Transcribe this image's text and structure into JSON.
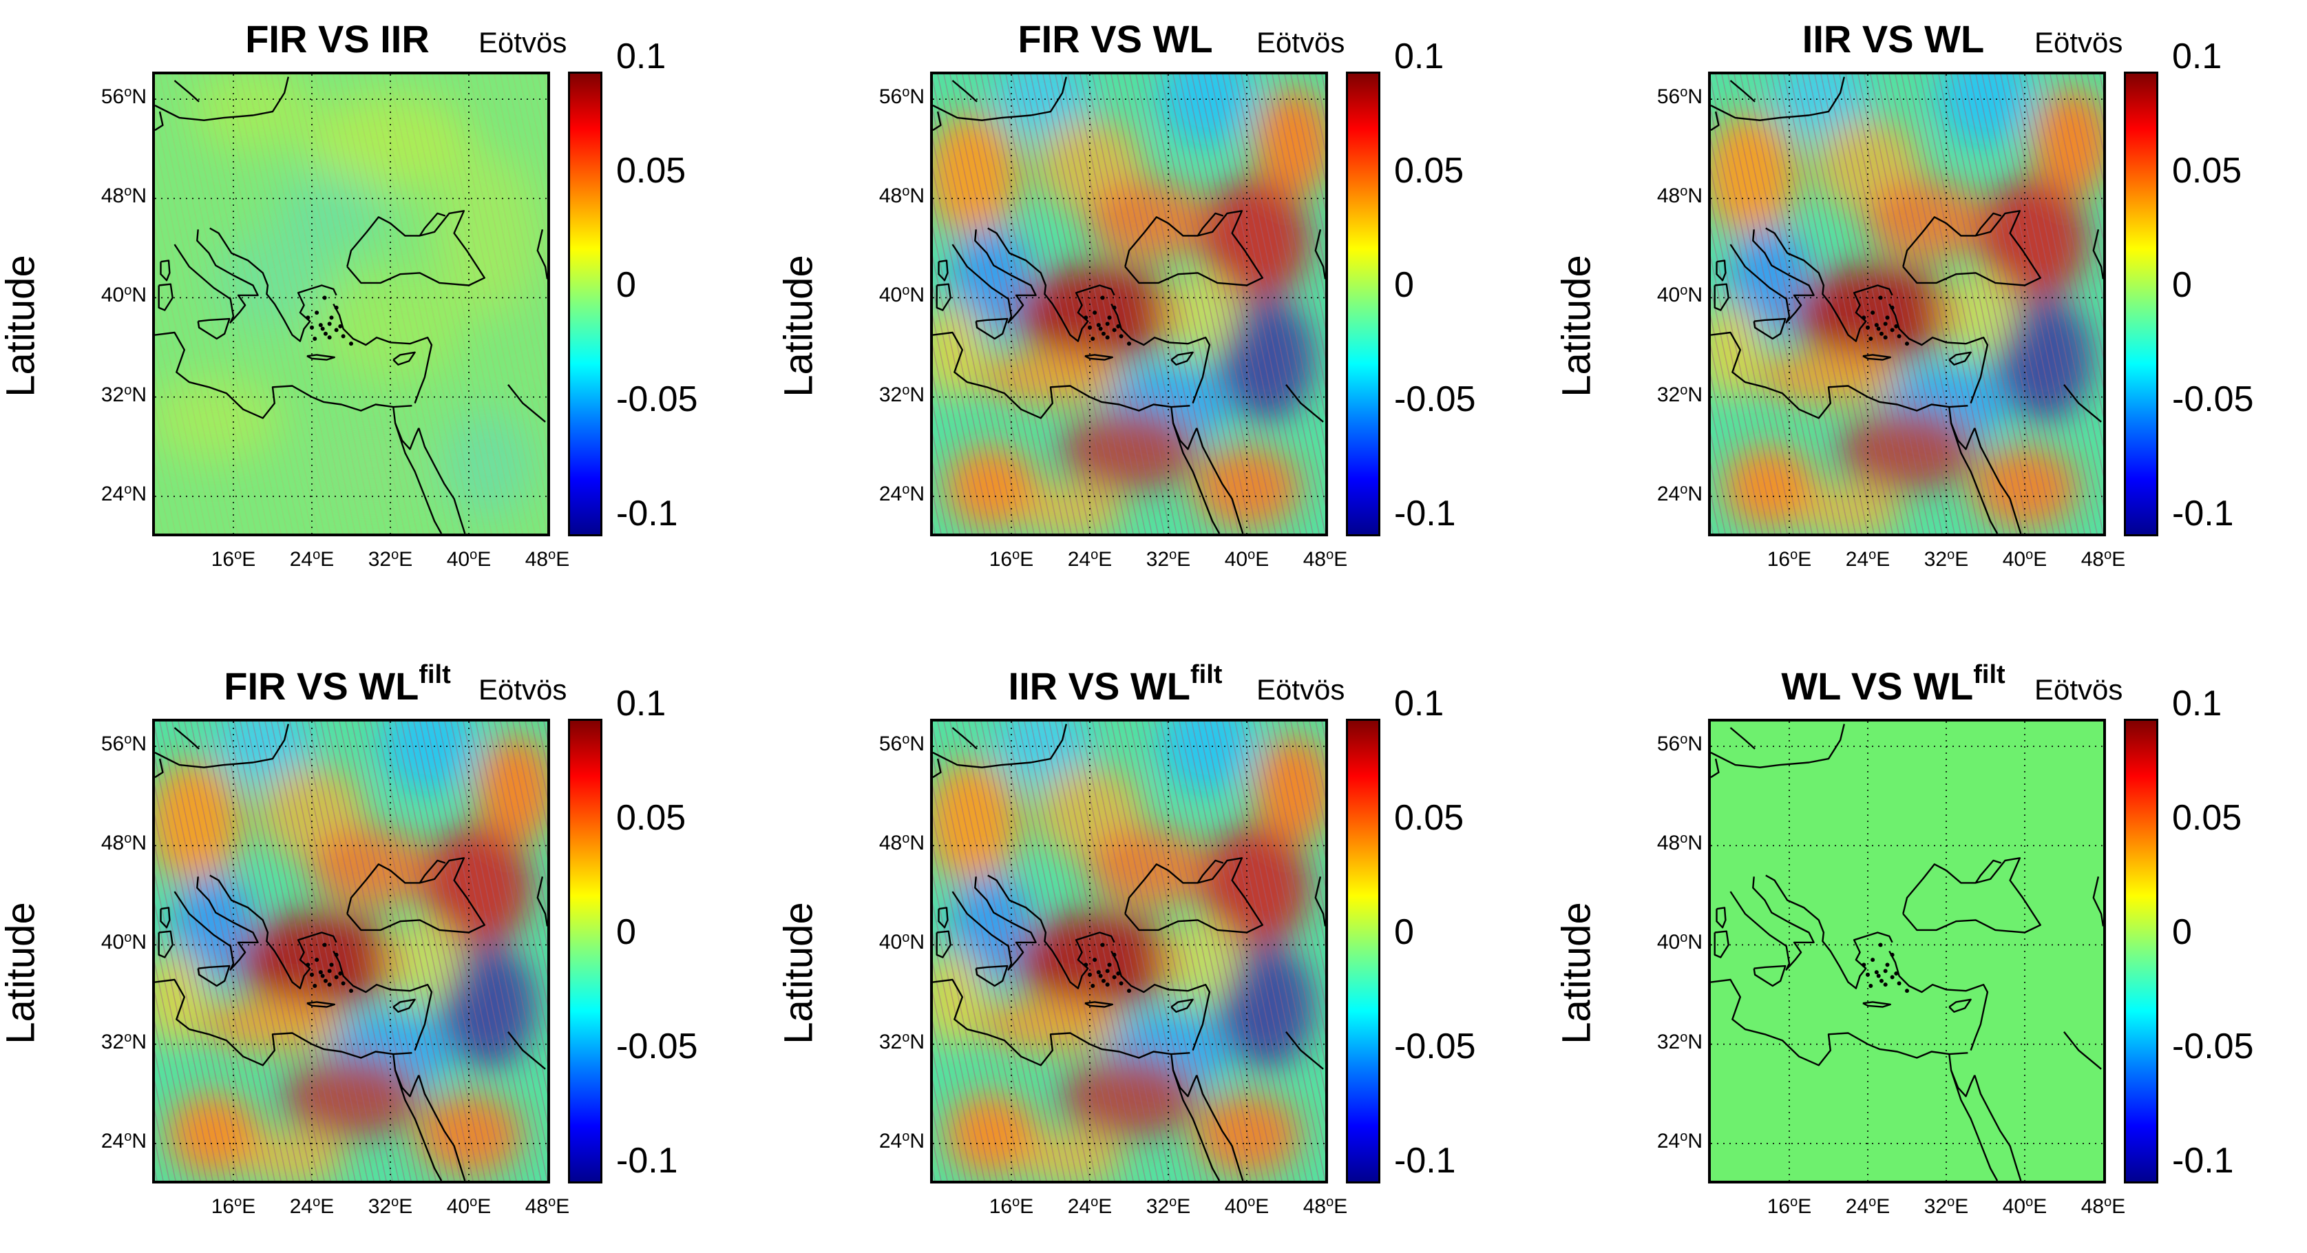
{
  "unit_label": "Eötvös",
  "y_axis_label": "Latitude",
  "lat_ticks": [
    {
      "deg": "56",
      "hemi": "N"
    },
    {
      "deg": "48",
      "hemi": "N"
    },
    {
      "deg": "40",
      "hemi": "N"
    },
    {
      "deg": "32",
      "hemi": "N"
    },
    {
      "deg": "24",
      "hemi": "N"
    }
  ],
  "lon_ticks": [
    {
      "deg": "16",
      "hemi": "E"
    },
    {
      "deg": "24",
      "hemi": "E"
    },
    {
      "deg": "32",
      "hemi": "E"
    },
    {
      "deg": "40",
      "hemi": "E"
    },
    {
      "deg": "48",
      "hemi": "E"
    }
  ],
  "colorbar_ticks": [
    "0.1",
    "0.05",
    "0",
    "-0.05",
    "-0.1"
  ],
  "colorbar_range": [
    -0.1,
    0.1
  ],
  "panels": [
    {
      "title": "FIR VS IIR",
      "sup": "",
      "pattern": "weak"
    },
    {
      "title": "FIR VS WL",
      "sup": "",
      "pattern": "strong"
    },
    {
      "title": "IIR VS WL",
      "sup": "",
      "pattern": "strong"
    },
    {
      "title": "FIR VS WL",
      "sup": "filt",
      "pattern": "strong"
    },
    {
      "title": "IIR VS WL",
      "sup": "filt",
      "pattern": "strong"
    },
    {
      "title": "WL VS WL",
      "sup": "filt",
      "pattern": "zero"
    }
  ],
  "colors": {
    "zero_green": "#6ef06e",
    "coast": "#000000",
    "grid": "#000000"
  }
}
